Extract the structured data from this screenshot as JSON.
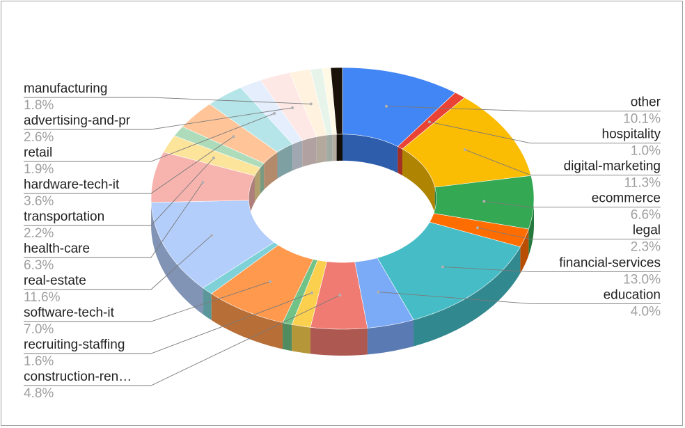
{
  "chart_data": {
    "type": "pie",
    "variant": "3d-donut",
    "title": "",
    "legend": "labels-with-leader-lines",
    "slices": [
      {
        "label": "other",
        "value": 10.1,
        "pct_label": "10.1%",
        "color": "#4285f4",
        "side": "right"
      },
      {
        "label": "hospitality",
        "value": 1.0,
        "pct_label": "1.0%",
        "color": "#ea4335",
        "side": "right"
      },
      {
        "label": "digital-marketing",
        "value": 11.3,
        "pct_label": "11.3%",
        "color": "#fbbc04",
        "side": "right"
      },
      {
        "label": "ecommerce",
        "value": 6.6,
        "pct_label": "6.6%",
        "color": "#34a853",
        "side": "right"
      },
      {
        "label": "legal",
        "value": 2.3,
        "pct_label": "2.3%",
        "color": "#ff6d01",
        "side": "right"
      },
      {
        "label": "financial-services",
        "value": 13.0,
        "pct_label": "13.0%",
        "color": "#46bdc6",
        "side": "right"
      },
      {
        "label": "education",
        "value": 4.0,
        "pct_label": "4.0%",
        "color": "#7baaf7",
        "side": "right"
      },
      {
        "label": "construction-ren…",
        "value": 4.8,
        "pct_label": "4.8%",
        "color": "#f07b72",
        "side": "left"
      },
      {
        "label": "recruiting-staffing",
        "value": 1.6,
        "pct_label": "1.6%",
        "color": "#fcd04f",
        "side": "left"
      },
      {
        "label": "",
        "value": 0.8,
        "pct_label": "",
        "color": "#71c287",
        "side": "none"
      },
      {
        "label": "software-tech-it",
        "value": 7.0,
        "pct_label": "7.0%",
        "color": "#ff994d",
        "side": "left"
      },
      {
        "label": "",
        "value": 1.0,
        "pct_label": "",
        "color": "#7ed1d7",
        "side": "none"
      },
      {
        "label": "real-estate",
        "value": 11.6,
        "pct_label": "11.6%",
        "color": "#b3cefb",
        "side": "left"
      },
      {
        "label": "health-care",
        "value": 6.3,
        "pct_label": "6.3%",
        "color": "#f7b4ae",
        "side": "left"
      },
      {
        "label": "transportation",
        "value": 2.2,
        "pct_label": "2.2%",
        "color": "#fde49b",
        "side": "left"
      },
      {
        "label": "",
        "value": 1.3,
        "pct_label": "",
        "color": "#aedcba",
        "side": "none"
      },
      {
        "label": "hardware-tech-it",
        "value": 3.6,
        "pct_label": "3.6%",
        "color": "#ffc599",
        "side": "left"
      },
      {
        "label": "",
        "value": 3.3,
        "pct_label": "",
        "color": "#b5e5e8",
        "side": "none"
      },
      {
        "label": "retail",
        "value": 1.9,
        "pct_label": "1.9%",
        "color": "#e4eefd",
        "side": "left"
      },
      {
        "label": "advertising-and-pr",
        "value": 2.6,
        "pct_label": "2.6%",
        "color": "#fde8e6",
        "side": "left"
      },
      {
        "label": "manufacturing",
        "value": 1.8,
        "pct_label": "1.8%",
        "color": "#fff3e0",
        "side": "left"
      },
      {
        "label": "",
        "value": 1.0,
        "pct_label": "",
        "color": "#e6f4ea",
        "side": "none"
      },
      {
        "label": "",
        "value": 0.7,
        "pct_label": "",
        "color": "#fff9e6",
        "side": "none"
      },
      {
        "label": "",
        "value": 1.0,
        "pct_label": "",
        "color": "#1a1208",
        "side": "none"
      }
    ]
  }
}
